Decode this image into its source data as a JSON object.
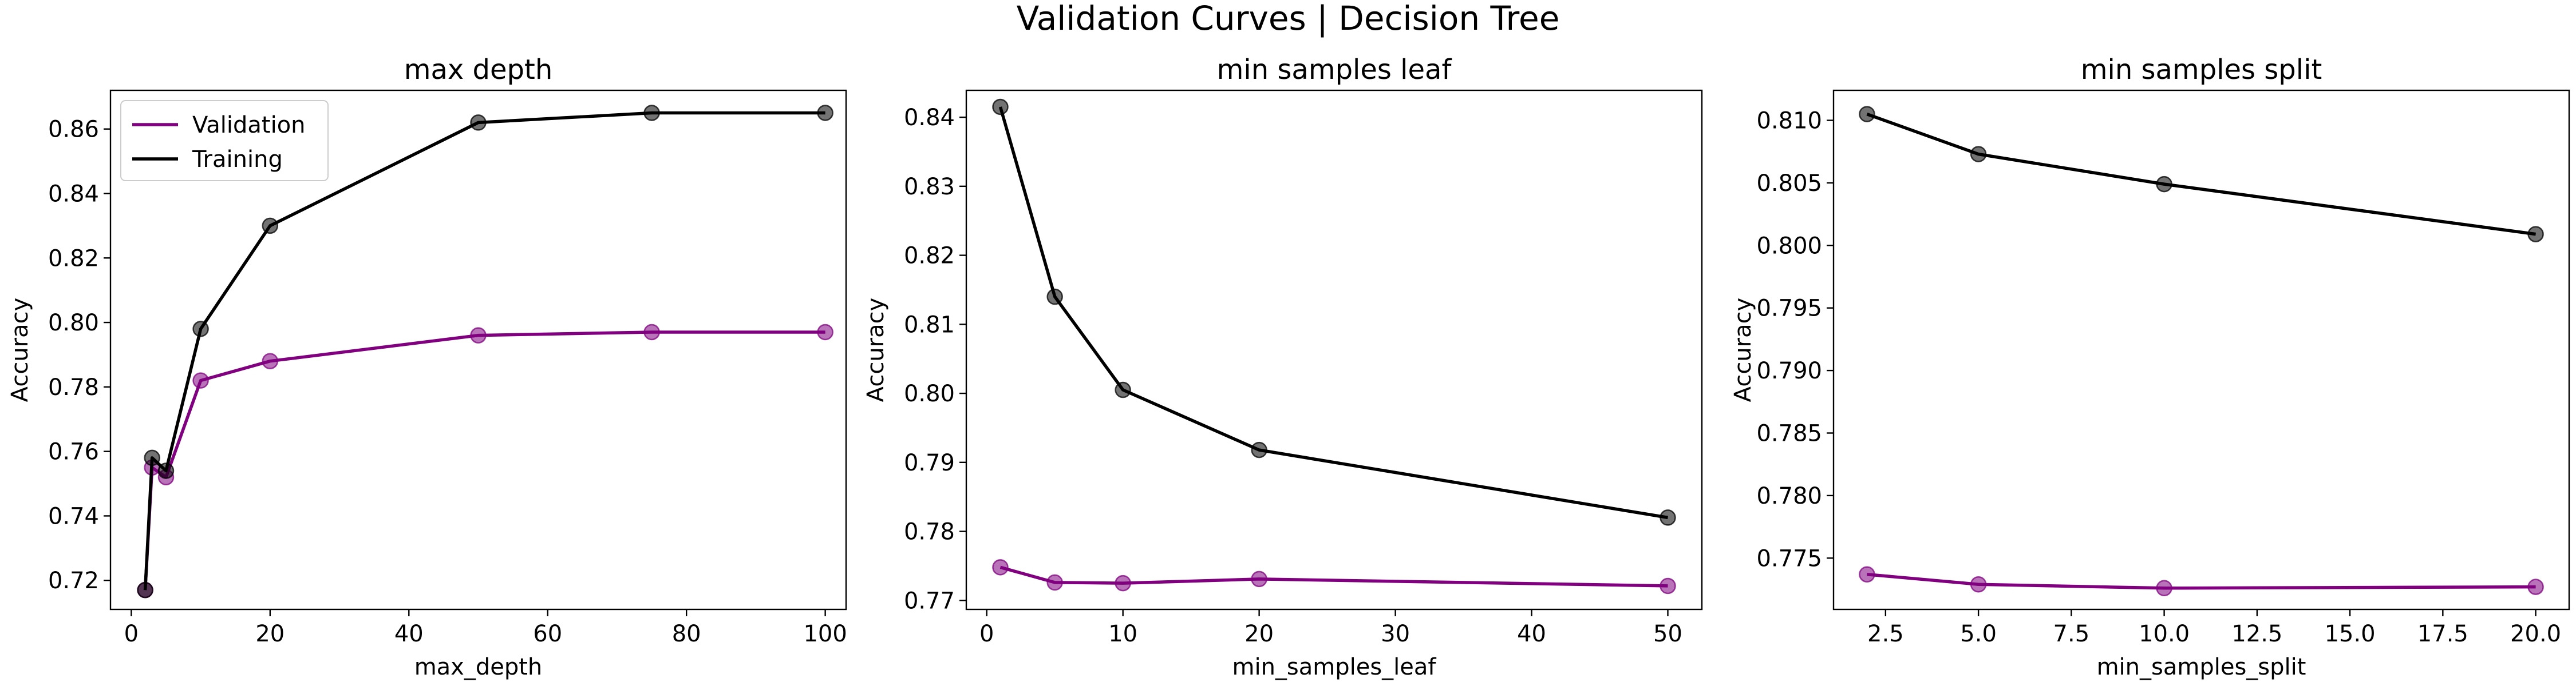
{
  "figure": {
    "suptitle": "Validation Curves | Decision Tree"
  },
  "chart_data": [
    {
      "type": "line",
      "title": "max depth",
      "xlabel": "max_depth",
      "ylabel": "Accuracy",
      "xlim": [
        -3,
        103
      ],
      "ylim": [
        0.711,
        0.872
      ],
      "xticks": [
        0,
        20,
        40,
        60,
        80,
        100
      ],
      "xtick_labels": [
        "0",
        "20",
        "40",
        "60",
        "80",
        "100"
      ],
      "yticks": [
        0.72,
        0.74,
        0.76,
        0.78,
        0.8,
        0.82,
        0.84,
        0.86
      ],
      "ytick_labels": [
        "0.72",
        "0.74",
        "0.76",
        "0.78",
        "0.80",
        "0.82",
        "0.84",
        "0.86"
      ],
      "grid": false,
      "legend": {
        "position": "upper-left",
        "entries": [
          "Validation",
          "Training"
        ]
      },
      "x": [
        2,
        3,
        5,
        10,
        20,
        50,
        75,
        100
      ],
      "series": [
        {
          "name": "Validation",
          "color": "#800080",
          "values": [
            0.717,
            0.755,
            0.752,
            0.782,
            0.788,
            0.796,
            0.797,
            0.797
          ]
        },
        {
          "name": "Training",
          "color": "#000000",
          "values": [
            0.717,
            0.758,
            0.754,
            0.798,
            0.83,
            0.862,
            0.865,
            0.865
          ]
        }
      ]
    },
    {
      "type": "line",
      "title": "min samples leaf",
      "xlabel": "min_samples_leaf",
      "ylabel": "Accuracy",
      "xlim": [
        -1.5,
        52.5
      ],
      "ylim": [
        0.7687,
        0.8439
      ],
      "xticks": [
        0,
        10,
        20,
        30,
        40,
        50
      ],
      "xtick_labels": [
        "0",
        "10",
        "20",
        "30",
        "40",
        "50"
      ],
      "yticks": [
        0.77,
        0.78,
        0.79,
        0.8,
        0.81,
        0.82,
        0.83,
        0.84
      ],
      "ytick_labels": [
        "0.77",
        "0.78",
        "0.79",
        "0.80",
        "0.81",
        "0.82",
        "0.83",
        "0.84"
      ],
      "grid": false,
      "x": [
        1,
        5,
        10,
        20,
        50
      ],
      "series": [
        {
          "name": "Validation",
          "color": "#800080",
          "values": [
            0.7748,
            0.7726,
            0.7725,
            0.7731,
            0.7721
          ]
        },
        {
          "name": "Training",
          "color": "#000000",
          "values": [
            0.8415,
            0.814,
            0.8005,
            0.7918,
            0.782
          ]
        }
      ]
    },
    {
      "type": "line",
      "title": "min samples split",
      "xlabel": "min_samples_split",
      "ylabel": "Accuracy",
      "xlim": [
        1.1,
        20.9
      ],
      "ylim": [
        0.7709,
        0.8124
      ],
      "xticks": [
        2.5,
        5.0,
        7.5,
        10.0,
        12.5,
        15.0,
        17.5,
        20.0
      ],
      "xtick_labels": [
        "2.5",
        "5.0",
        "7.5",
        "10.0",
        "12.5",
        "15.0",
        "17.5",
        "20.0"
      ],
      "yticks": [
        0.775,
        0.78,
        0.785,
        0.79,
        0.795,
        0.8,
        0.805,
        0.81
      ],
      "ytick_labels": [
        "0.775",
        "0.780",
        "0.785",
        "0.790",
        "0.795",
        "0.800",
        "0.805",
        "0.810"
      ],
      "grid": false,
      "x": [
        2,
        5,
        10,
        20
      ],
      "series": [
        {
          "name": "Validation",
          "color": "#800080",
          "values": [
            0.7737,
            0.7729,
            0.7726,
            0.7727
          ]
        },
        {
          "name": "Training",
          "color": "#000000",
          "values": [
            0.8105,
            0.8073,
            0.8049,
            0.8009
          ]
        }
      ]
    }
  ]
}
